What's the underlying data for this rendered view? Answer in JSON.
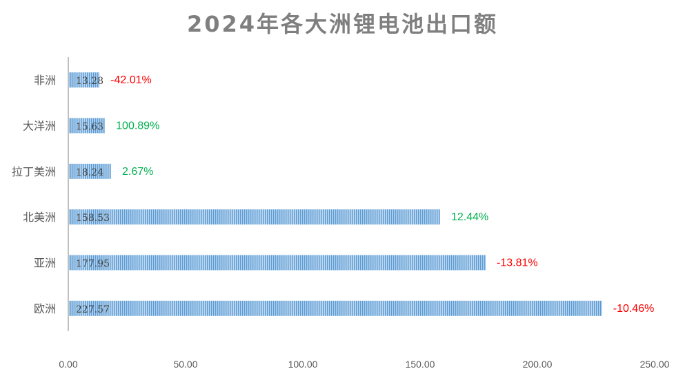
{
  "chart_data": {
    "type": "bar",
    "orientation": "horizontal",
    "title": "2024年各大洲锂电池出口额",
    "categories": [
      "非洲",
      "大洋洲",
      "拉丁美洲",
      "北美洲",
      "亚洲",
      "欧洲"
    ],
    "values": [
      13.28,
      15.63,
      18.24,
      158.53,
      177.95,
      227.57
    ],
    "value_labels": [
      "13.28",
      "15.63",
      "18.24",
      "158.53",
      "177.95",
      "227.57"
    ],
    "annotations": [
      "-42.01%",
      "100.89%",
      "2.67%",
      "12.44%",
      "-13.81%",
      "-10.46%"
    ],
    "annotation_colors": [
      "#ff0000",
      "#00b050",
      "#00b050",
      "#00b050",
      "#ff0000",
      "#ff0000"
    ],
    "xlim": [
      0,
      250
    ],
    "x_ticks": [
      "0.00",
      "50.00",
      "100.00",
      "150.00",
      "200.00",
      "250.00"
    ],
    "x_tick_values": [
      0,
      50,
      100,
      150,
      200,
      250
    ],
    "bar_color": "#5b9bd5",
    "bar_stripe_color": "#bdd7ee",
    "grid": false,
    "legend": "none"
  }
}
